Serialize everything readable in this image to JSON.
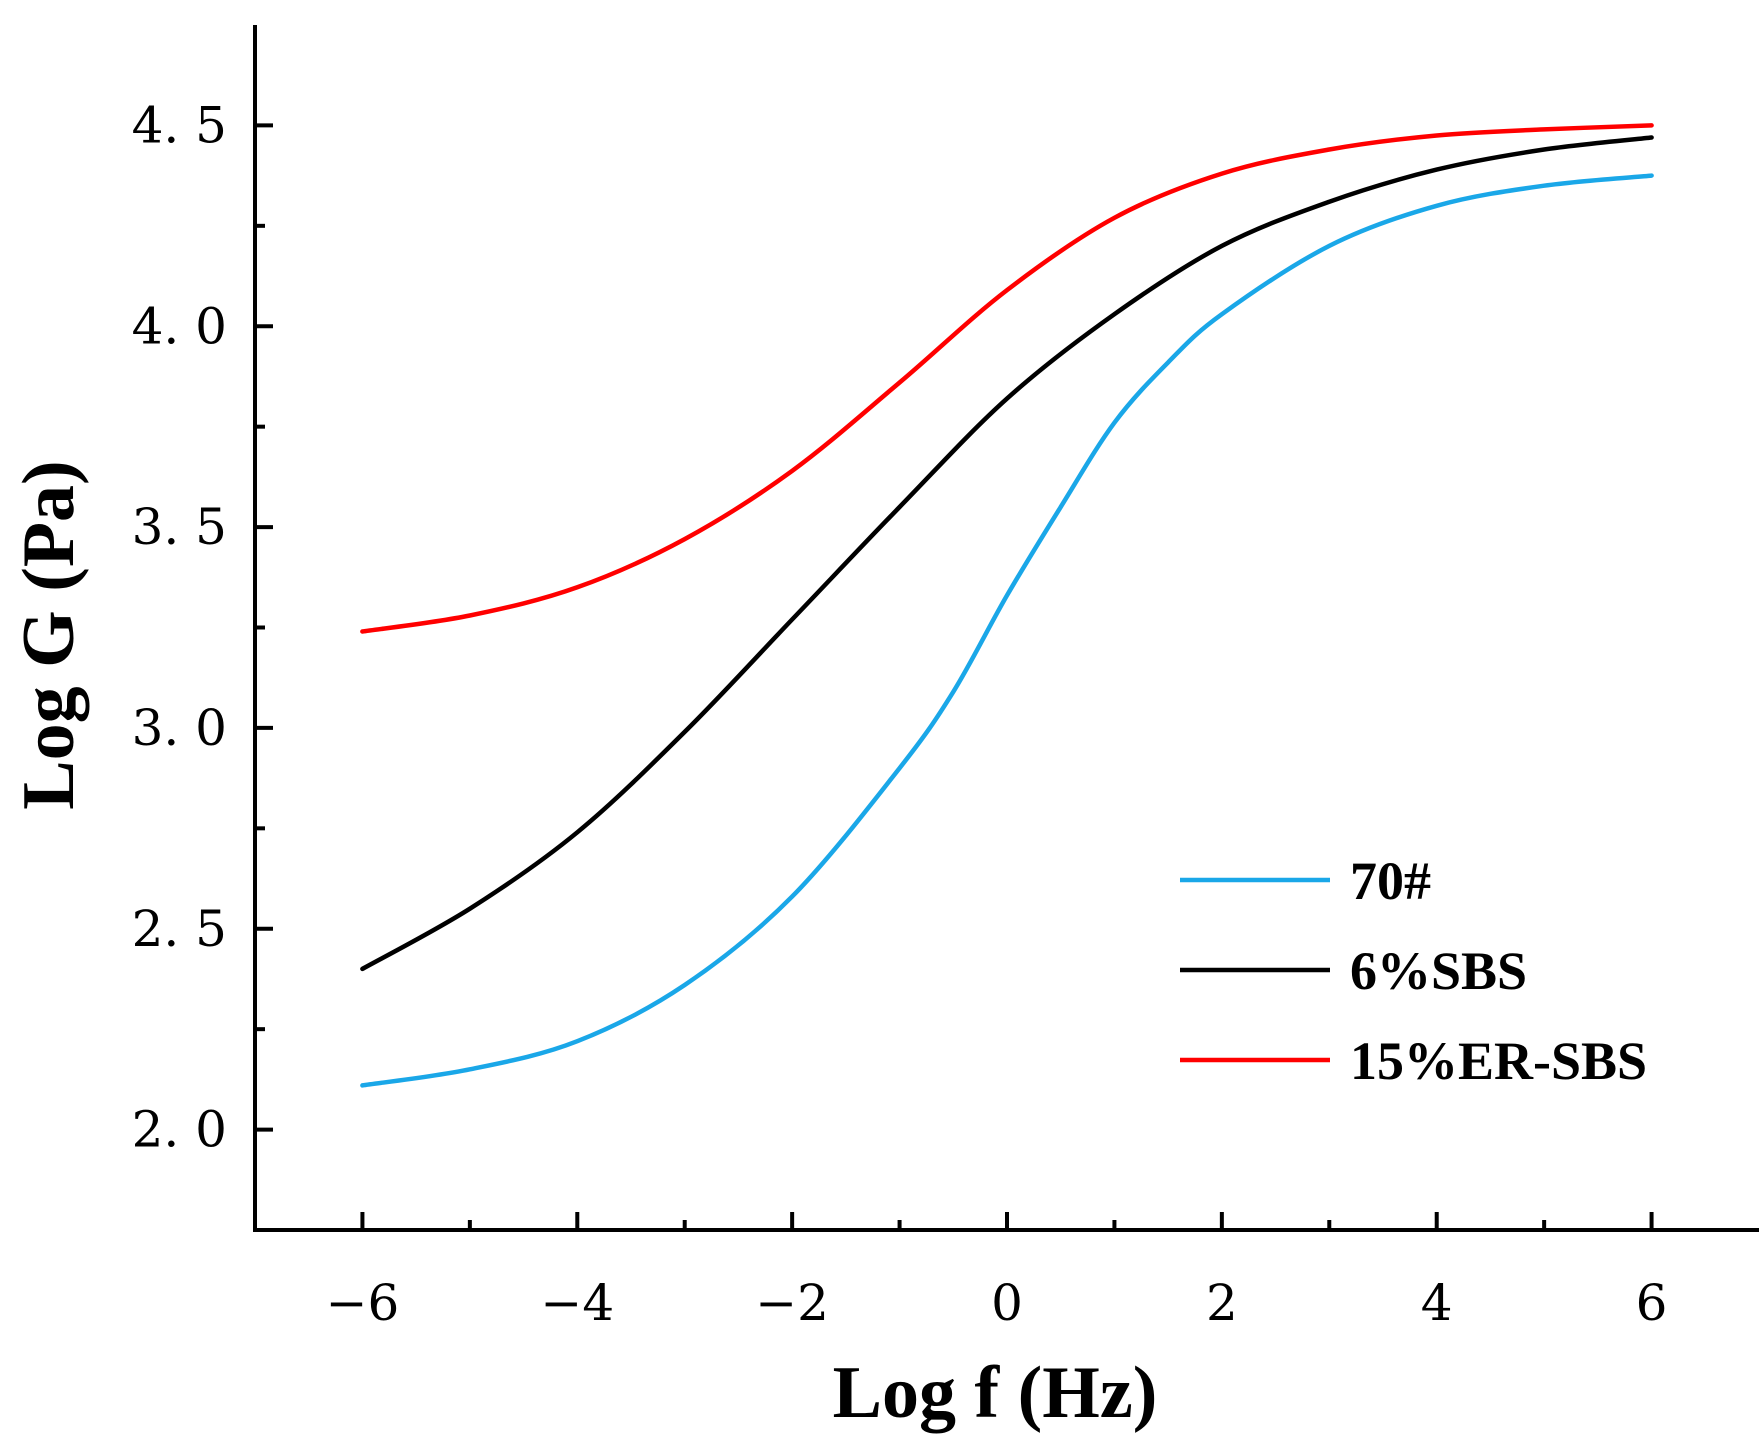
{
  "chart_data": {
    "type": "line",
    "title": "",
    "xlabel": "Log f (Hz)",
    "ylabel": "Log G (Pa)",
    "xlim": [
      -7,
      7
    ],
    "ylim": [
      1.75,
      4.75
    ],
    "xticks": [
      -6,
      -4,
      -2,
      0,
      2,
      4,
      6
    ],
    "xtick_labels": [
      "−6",
      "−4",
      "−2",
      "0",
      "2",
      "4",
      "6"
    ],
    "xminor": [
      -5,
      -3,
      -1,
      1,
      3,
      5
    ],
    "yticks": [
      2.0,
      2.5,
      3.0,
      3.5,
      4.0,
      4.5
    ],
    "ytick_labels": [
      "2. 0",
      "2. 5",
      "3. 0",
      "3. 5",
      "4. 0",
      "4. 5"
    ],
    "yminor": [
      2.25,
      2.75,
      3.25,
      3.75,
      4.25
    ],
    "legend_position": "bottom-right",
    "series": [
      {
        "name": "70#",
        "color": "#1aa7e8",
        "x": [
          -6,
          -5,
          -4,
          -3,
          -2,
          -1,
          -0.5,
          0,
          0.5,
          1,
          1.5,
          2,
          3,
          4,
          5,
          6
        ],
        "y": [
          2.11,
          2.15,
          2.22,
          2.36,
          2.58,
          2.9,
          3.09,
          3.33,
          3.55,
          3.76,
          3.91,
          4.03,
          4.2,
          4.3,
          4.35,
          4.375
        ]
      },
      {
        "name": "6%SBS",
        "color": "#000000",
        "x": [
          -6,
          -5,
          -4,
          -3,
          -2,
          -1,
          0,
          1,
          2,
          3,
          4,
          5,
          6
        ],
        "y": [
          2.4,
          2.55,
          2.74,
          2.99,
          3.27,
          3.55,
          3.82,
          4.03,
          4.2,
          4.31,
          4.39,
          4.44,
          4.47
        ]
      },
      {
        "name": "15%ER-SBS",
        "color": "#ff0000",
        "x": [
          -6,
          -5,
          -4,
          -3,
          -2,
          -1,
          0,
          1,
          2,
          3,
          4,
          5,
          6
        ],
        "y": [
          3.24,
          3.28,
          3.35,
          3.47,
          3.64,
          3.86,
          4.09,
          4.27,
          4.38,
          4.44,
          4.475,
          4.49,
          4.5
        ]
      }
    ]
  }
}
